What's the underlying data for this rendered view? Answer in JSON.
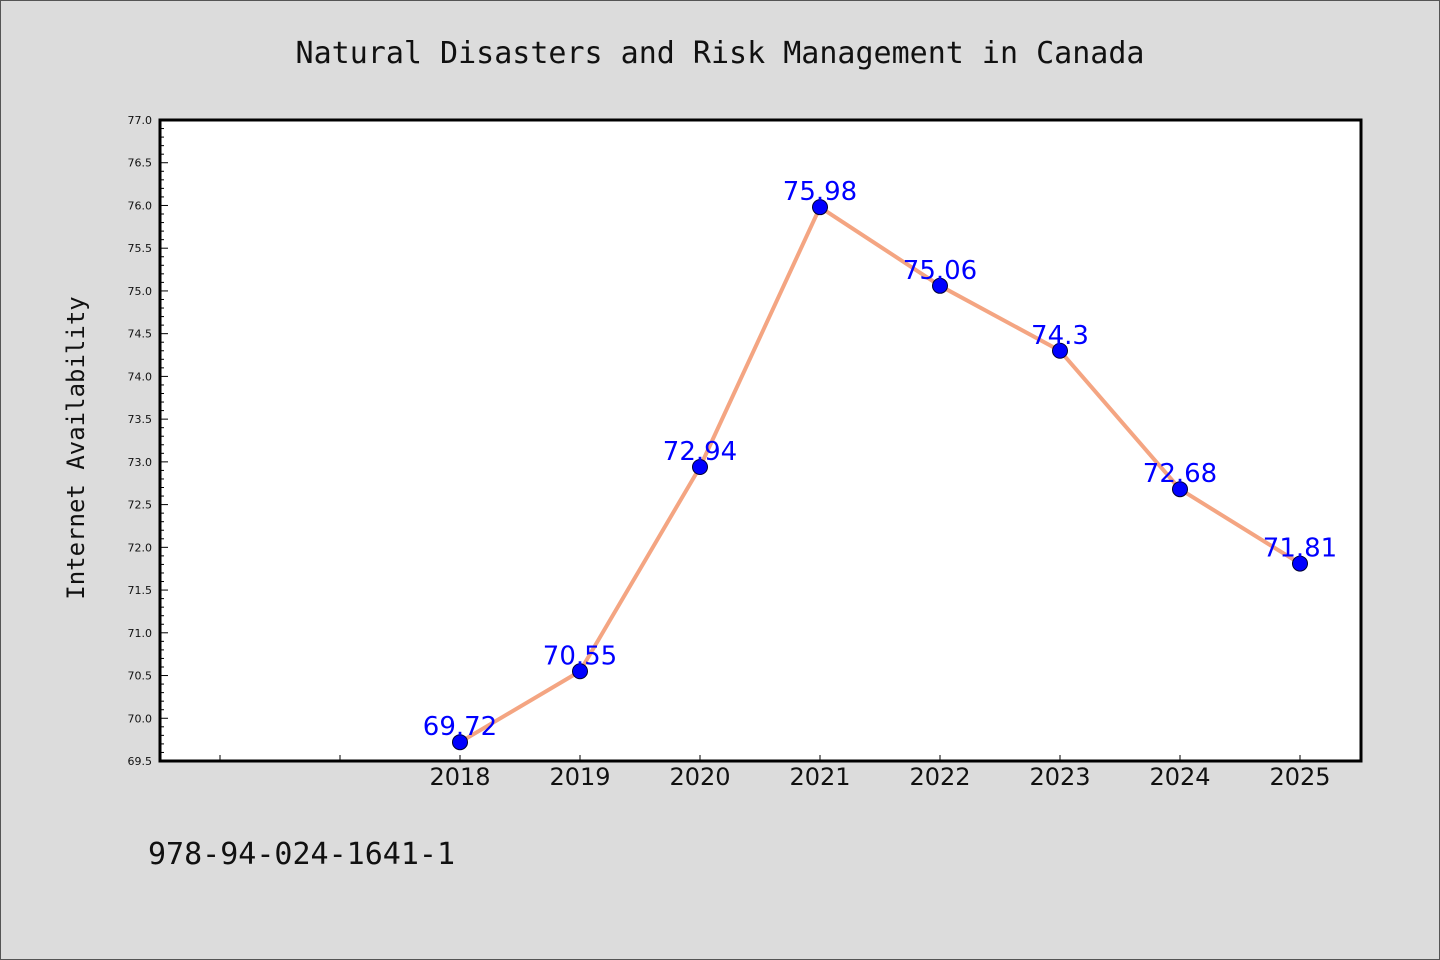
{
  "chart_data": {
    "type": "line",
    "title": "Natural Disasters and Risk Management in Canada",
    "xlabel": "",
    "ylabel": "Internet Availability",
    "categories": [
      "2018",
      "2019",
      "2020",
      "2021",
      "2022",
      "2023",
      "2024",
      "2025"
    ],
    "series": [
      {
        "values": [
          69.72,
          70.55,
          72.94,
          75.98,
          75.06,
          74.3,
          72.68,
          71.81
        ],
        "data_labels": [
          "69.72",
          "70.55",
          "72.94",
          "75.98",
          "75.06",
          "74.3",
          "72.68",
          "71.81"
        ]
      }
    ],
    "ylim": [
      69.5,
      77.0
    ],
    "yticks": [
      "69.5",
      "70.0",
      "70.5",
      "71.0",
      "71.5",
      "72.0",
      "72.5",
      "73.0",
      "73.5",
      "74.0",
      "74.5",
      "75.0",
      "75.5",
      "76.0",
      "76.5",
      "77.0"
    ],
    "grid": false,
    "colors": {
      "line": "#f4a582",
      "marker": "#0000ff",
      "data_label": "#0000ff",
      "plot_background": "#ffffff",
      "figure_background": "#dcdcdc"
    }
  },
  "footer": {
    "isbn": "978-94-024-1641-1"
  }
}
